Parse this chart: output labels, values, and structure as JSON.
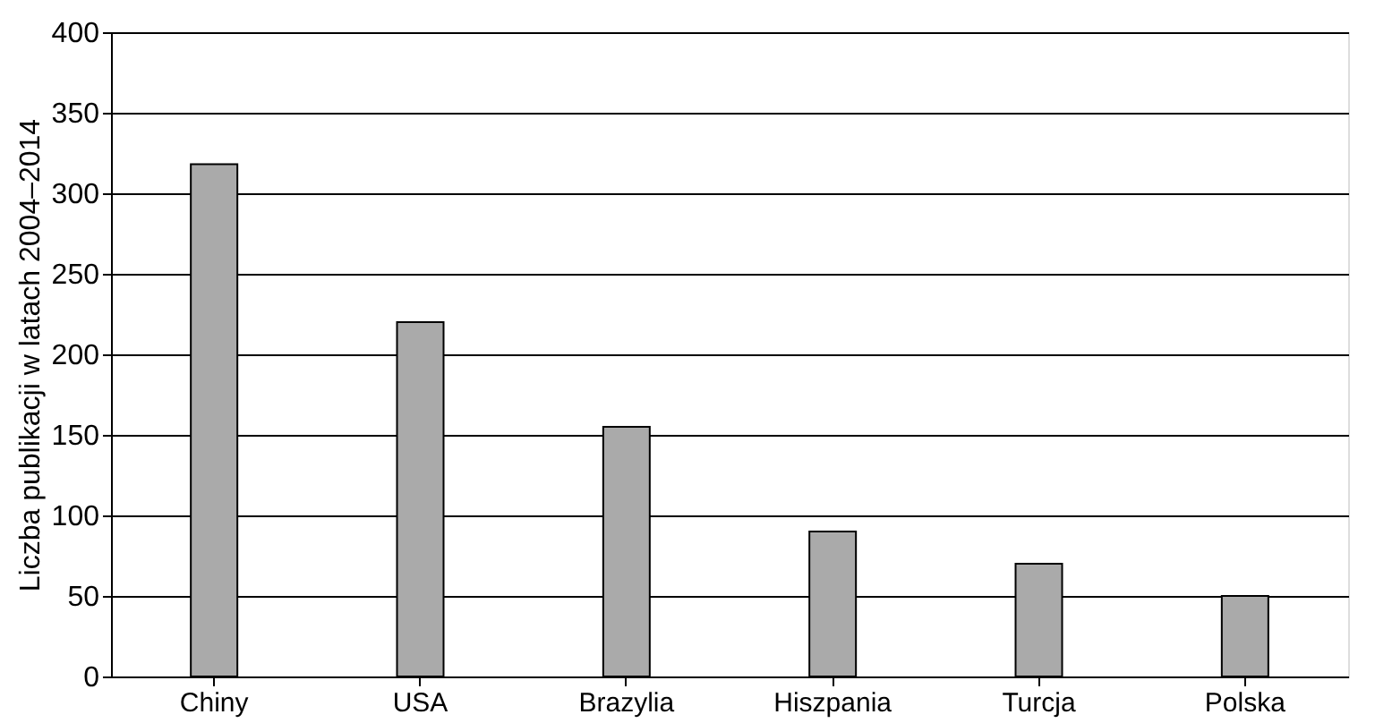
{
  "chart_data": {
    "type": "bar",
    "ylabel": "Liczba publikacji w latach 2004–2014",
    "categories": [
      "Chiny",
      "USA",
      "Brazylia",
      "Hiszpania",
      "Turcja",
      "Polska"
    ],
    "values": [
      318,
      220,
      155,
      90,
      70,
      50
    ],
    "color": "#aaaaaa",
    "ylim": [
      0,
      400
    ],
    "yticks": [
      0,
      50,
      100,
      150,
      200,
      250,
      300,
      350,
      400
    ],
    "grid": "y"
  }
}
